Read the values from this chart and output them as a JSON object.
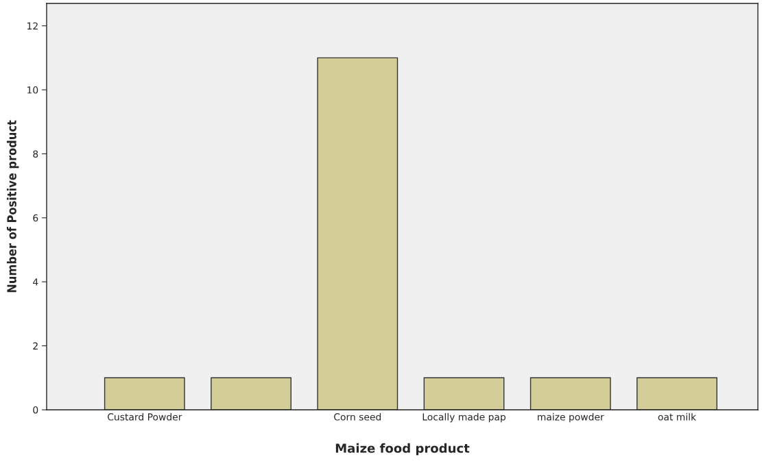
{
  "chart_data": {
    "type": "bar",
    "xlabel": "Maize food product",
    "ylabel": "Number of Positive product",
    "categories": [
      "Custard Powder",
      null,
      "Corn seed",
      "Locally made pap",
      "maize powder",
      "oat milk"
    ],
    "values": [
      1,
      1,
      11,
      1,
      1,
      1
    ],
    "color": "#d3ce97",
    "ylim": [
      0,
      12.7
    ],
    "yticks": [
      0,
      2,
      4,
      6,
      8,
      10,
      12
    ],
    "grid": false,
    "legend": false
  }
}
